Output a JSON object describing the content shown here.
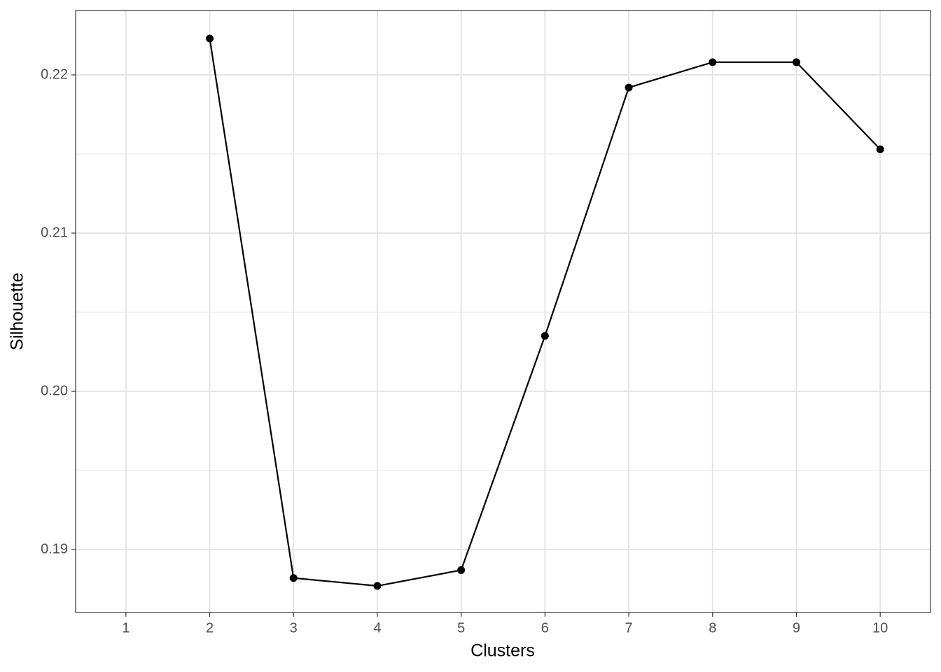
{
  "chart_data": {
    "type": "line",
    "x_label": "Clusters",
    "y_label": "Silhouette",
    "categories": [
      "1",
      "2",
      "3",
      "4",
      "5",
      "6",
      "7",
      "8",
      "9",
      "10"
    ],
    "values": [
      null,
      0.2223,
      0.1882,
      0.1877,
      0.1887,
      0.2035,
      0.2192,
      0.2208,
      0.2208,
      0.2153
    ],
    "color": "#000000",
    "ylim": [
      0.18602,
      0.22407
    ],
    "yticks": [
      0.19,
      {
        "value": 0.2,
        "label": "0.20"
      },
      0.21,
      0.22
    ],
    "minor_yticks": [
      0.195,
      0.205,
      0.215
    ],
    "grid": true,
    "markers": true
  }
}
